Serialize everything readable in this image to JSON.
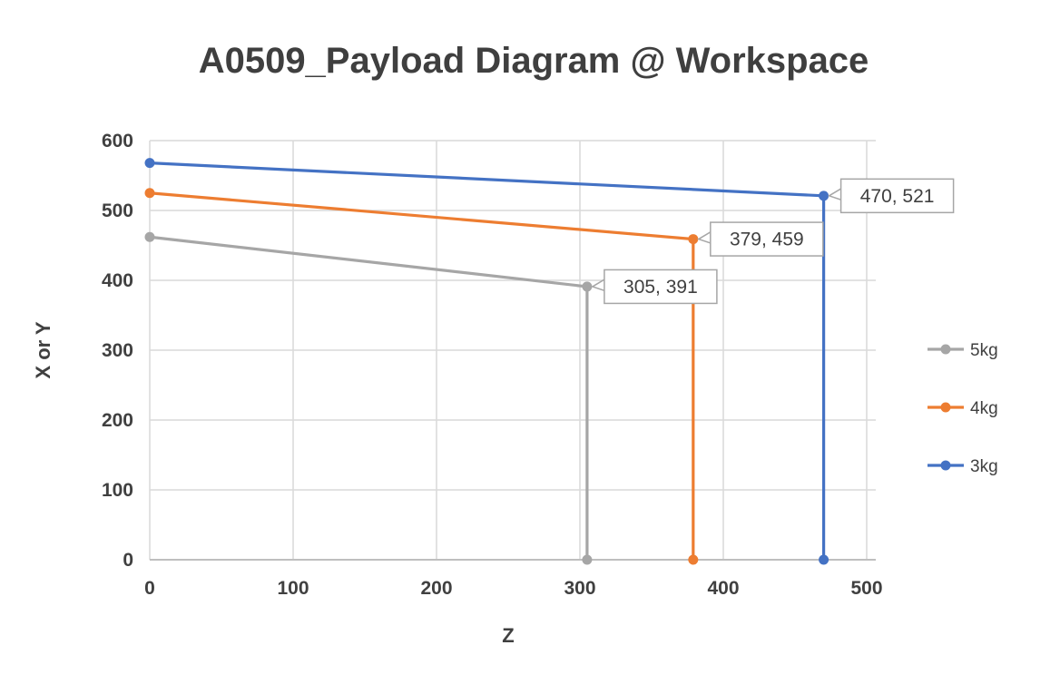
{
  "chart_data": {
    "type": "line",
    "title": "A0509_Payload Diagram @ Workspace",
    "xlabel": "Z",
    "ylabel": "X or Y",
    "xlim": [
      0,
      500
    ],
    "ylim": [
      0,
      600
    ],
    "xticks": [
      0,
      100,
      200,
      300,
      400,
      500
    ],
    "yticks": [
      0,
      100,
      200,
      300,
      400,
      500,
      600
    ],
    "grid": true,
    "legend_position": "right",
    "legend_order": [
      "5kg",
      "4kg",
      "3kg"
    ],
    "series": [
      {
        "name": "5kg",
        "color": "#A6A6A6",
        "points": [
          [
            0,
            462
          ],
          [
            305,
            391
          ],
          [
            305,
            0
          ]
        ],
        "data_label": {
          "text": "305, 391",
          "x": 305,
          "y": 391
        }
      },
      {
        "name": "4kg",
        "color": "#ED7D31",
        "points": [
          [
            0,
            525
          ],
          [
            379,
            459
          ],
          [
            379,
            0
          ]
        ],
        "data_label": {
          "text": "379, 459",
          "x": 379,
          "y": 459
        }
      },
      {
        "name": "3kg",
        "color": "#4472C4",
        "points": [
          [
            0,
            568
          ],
          [
            470,
            521
          ],
          [
            470,
            0
          ]
        ],
        "data_label": {
          "text": "470, 521",
          "x": 470,
          "y": 521
        }
      }
    ],
    "colors": {
      "gridline": "#D9D9D9",
      "axis_line": "#BFBFBF",
      "text": "#404040",
      "callout_border": "#A6A6A6",
      "callout_fill": "#FFFFFF",
      "background": "#FFFFFF"
    }
  }
}
